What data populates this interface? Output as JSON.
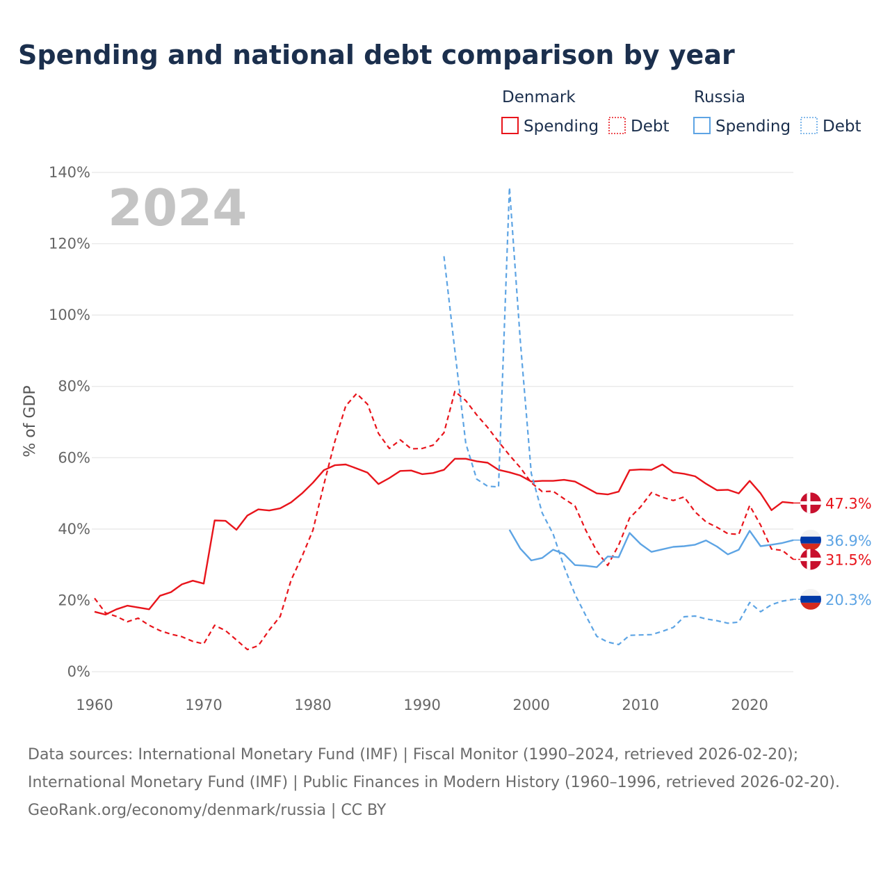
{
  "title": "Spending and national debt comparison by year",
  "colors": {
    "denmark": "#e8141b",
    "russia": "#5da4e4",
    "grid": "#e6e6e6",
    "title": "#1b2f4d"
  },
  "legend": {
    "groups": [
      {
        "name": "Denmark",
        "items": [
          {
            "label": "Spending",
            "style": "solid",
            "color": "#e8141b"
          },
          {
            "label": "Debt",
            "style": "dotted",
            "color": "#e8141b"
          }
        ]
      },
      {
        "name": "Russia",
        "items": [
          {
            "label": "Spending",
            "style": "solid",
            "color": "#5da4e4"
          },
          {
            "label": "Debt",
            "style": "dotted",
            "color": "#5da4e4"
          }
        ]
      }
    ]
  },
  "year_badge": "2024",
  "chart_data": {
    "type": "line",
    "ylabel": "% of GDP",
    "xlim": [
      1960,
      2024
    ],
    "ylim": [
      0,
      140
    ],
    "yticks": [
      0,
      20,
      40,
      60,
      80,
      100,
      120,
      140
    ],
    "ytick_labels": [
      "0%",
      "20%",
      "40%",
      "60%",
      "80%",
      "100%",
      "120%",
      "140%"
    ],
    "xticks": [
      1960,
      1970,
      1980,
      1990,
      2000,
      2010,
      2020
    ],
    "xtick_labels": [
      "1960",
      "1970",
      "1980",
      "1990",
      "2000",
      "2010",
      "2020"
    ],
    "grid": true,
    "series": [
      {
        "name": "Denmark Spending",
        "country": "Denmark",
        "color": "#e8141b",
        "dash": false,
        "x": [
          1960,
          1961,
          1962,
          1963,
          1964,
          1965,
          1966,
          1967,
          1968,
          1969,
          1970,
          1971,
          1972,
          1973,
          1974,
          1975,
          1976,
          1977,
          1978,
          1979,
          1980,
          1981,
          1982,
          1983,
          1984,
          1985,
          1986,
          1987,
          1988,
          1989,
          1990,
          1991,
          1992,
          1993,
          1994,
          1995,
          1996,
          1997,
          1998,
          1999,
          2000,
          2001,
          2002,
          2003,
          2004,
          2005,
          2006,
          2007,
          2008,
          2009,
          2010,
          2011,
          2012,
          2013,
          2014,
          2015,
          2016,
          2017,
          2018,
          2019,
          2020,
          2021,
          2022,
          2023,
          2024
        ],
        "y": [
          16.8,
          16.0,
          17.5,
          18.5,
          18.0,
          17.5,
          21.3,
          22.3,
          24.5,
          25.5,
          24.7,
          42.4,
          42.3,
          39.8,
          43.8,
          45.5,
          45.2,
          45.8,
          47.5,
          50.0,
          53.0,
          56.5,
          57.9,
          58.1,
          57.0,
          55.8,
          52.6,
          54.3,
          56.3,
          56.4,
          55.4,
          55.7,
          56.6,
          59.7,
          59.7,
          59.0,
          58.6,
          56.6,
          55.9,
          55.0,
          53.3,
          53.5,
          53.5,
          53.8,
          53.3,
          51.7,
          50.0,
          49.7,
          50.5,
          56.5,
          56.7,
          56.6,
          58.1,
          55.9,
          55.5,
          54.8,
          52.7,
          50.9,
          51.0,
          50.0,
          53.5,
          50.0,
          45.3,
          47.6,
          47.3
        ]
      },
      {
        "name": "Denmark Debt",
        "country": "Denmark",
        "color": "#e8141b",
        "dash": true,
        "x": [
          1960,
          1961,
          1962,
          1963,
          1964,
          1965,
          1966,
          1967,
          1968,
          1969,
          1970,
          1971,
          1972,
          1973,
          1974,
          1975,
          1976,
          1977,
          1978,
          1979,
          1980,
          1981,
          1982,
          1983,
          1984,
          1985,
          1986,
          1987,
          1988,
          1989,
          1990,
          1991,
          1992,
          1993,
          1994,
          1995,
          1996,
          1997,
          1998,
          1999,
          2000,
          2001,
          2002,
          2003,
          2004,
          2005,
          2006,
          2007,
          2008,
          2009,
          2010,
          2011,
          2012,
          2013,
          2014,
          2015,
          2016,
          2017,
          2018,
          2019,
          2020,
          2021,
          2022,
          2023,
          2024
        ],
        "y": [
          20.6,
          16.5,
          15.5,
          14.0,
          15.0,
          13.0,
          11.5,
          10.5,
          9.8,
          8.5,
          7.8,
          13.0,
          11.5,
          8.9,
          6.2,
          7.3,
          11.7,
          15.5,
          25.7,
          32.3,
          39.7,
          52.5,
          64.5,
          74.5,
          78.0,
          75.0,
          66.8,
          62.6,
          65.0,
          62.5,
          62.6,
          63.5,
          67.0,
          78.6,
          76.0,
          72.0,
          68.5,
          64.5,
          60.7,
          57.2,
          53.0,
          50.5,
          50.6,
          48.5,
          46.5,
          39.6,
          33.8,
          29.8,
          35.5,
          43.1,
          46.2,
          50.2,
          48.9,
          48.0,
          49.0,
          44.8,
          42.0,
          40.5,
          38.7,
          38.5,
          46.6,
          41.1,
          34.4,
          34.0,
          31.5
        ]
      },
      {
        "name": "Russia Spending",
        "country": "Russia",
        "color": "#5da4e4",
        "dash": false,
        "x": [
          1998,
          1999,
          2000,
          2001,
          2002,
          2003,
          2004,
          2005,
          2006,
          2007,
          2008,
          2009,
          2010,
          2011,
          2012,
          2013,
          2014,
          2015,
          2016,
          2017,
          2018,
          2019,
          2020,
          2021,
          2022,
          2023,
          2024
        ],
        "y": [
          39.8,
          34.5,
          31.2,
          31.9,
          34.2,
          33.0,
          29.9,
          29.7,
          29.3,
          32.3,
          32.1,
          38.9,
          35.8,
          33.6,
          34.3,
          35.0,
          35.2,
          35.6,
          36.8,
          35.1,
          32.9,
          34.2,
          39.5,
          35.2,
          35.6,
          36.1,
          36.9
        ]
      },
      {
        "name": "Russia Debt",
        "country": "Russia",
        "color": "#5da4e4",
        "dash": true,
        "x": [
          1992,
          1993,
          1994,
          1995,
          1996,
          1997,
          1998,
          1999,
          2000,
          2001,
          2002,
          2003,
          2004,
          2005,
          2006,
          2007,
          2008,
          2009,
          2010,
          2011,
          2012,
          2013,
          2014,
          2015,
          2016,
          2017,
          2018,
          2019,
          2020,
          2021,
          2022,
          2023,
          2024
        ],
        "y": [
          116.5,
          90.0,
          64.0,
          54.0,
          52.0,
          51.8,
          135.8,
          92.5,
          55.6,
          44.5,
          38.6,
          29.5,
          21.7,
          15.7,
          9.9,
          8.3,
          7.6,
          10.2,
          10.3,
          10.4,
          11.3,
          12.4,
          15.4,
          15.6,
          14.8,
          14.3,
          13.6,
          13.9,
          19.4,
          16.8,
          18.8,
          19.8,
          20.3
        ]
      }
    ],
    "end_labels": [
      {
        "text": "47.3%",
        "value": 47.3,
        "flag": "denmark",
        "color": "#e8141b"
      },
      {
        "text": "36.9%",
        "value": 36.9,
        "flag": "russia",
        "color": "#5da4e4"
      },
      {
        "text": "31.5%",
        "value": 31.5,
        "flag": "denmark",
        "color": "#e8141b"
      },
      {
        "text": "20.3%",
        "value": 20.3,
        "flag": "russia",
        "color": "#5da4e4"
      }
    ]
  },
  "footer": {
    "sources": "Data sources: International Monetary Fund (IMF) | Fiscal Monitor (1990–2024, retrieved 2026-02-20); International Monetary Fund (IMF) | Public Finances in Modern History (1960–1996, retrieved 2026-02-20).",
    "attribution": "GeoRank.org/economy/denmark/russia | CC BY"
  }
}
